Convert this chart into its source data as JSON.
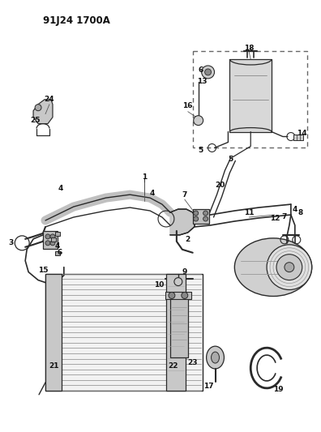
{
  "title_code": "91J24 1700A",
  "bg_color": "#ffffff",
  "line_color": "#2a2a2a",
  "fig_width": 3.96,
  "fig_height": 5.33,
  "dpi": 100
}
